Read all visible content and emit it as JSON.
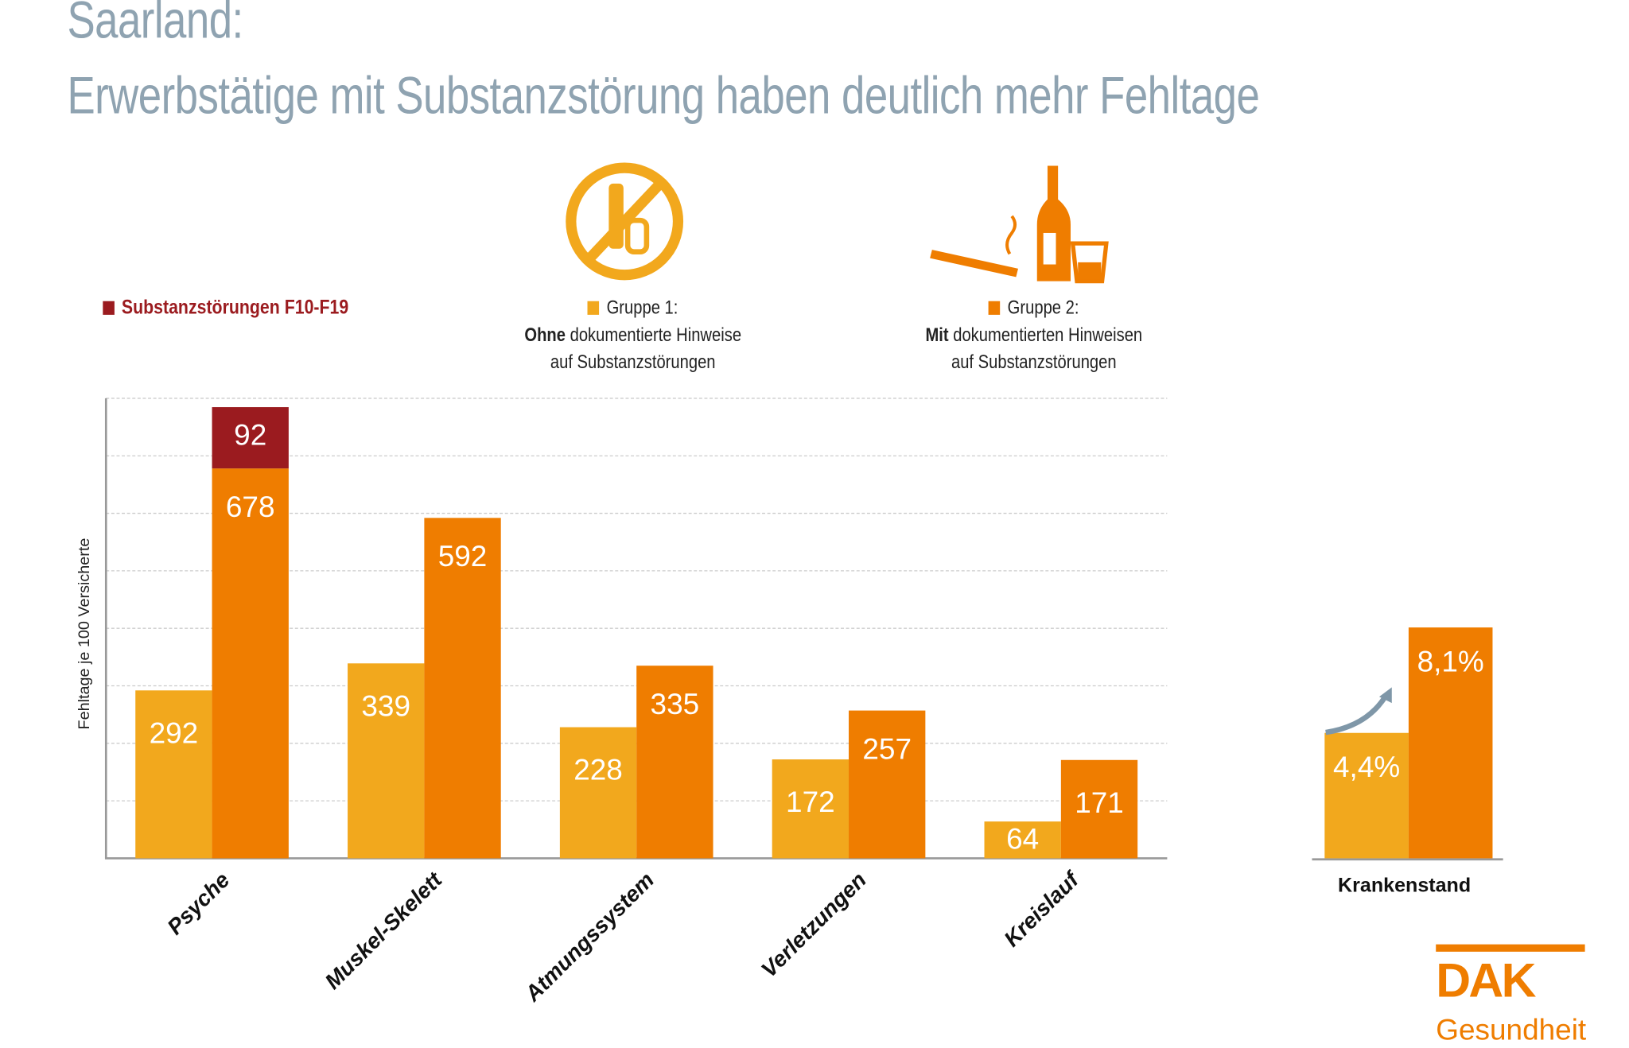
{
  "title_line1": "Saarland:",
  "title_line2": "Erwerbstätige mit Substanzstörung haben deutlich mehr Fehltage",
  "legend": {
    "substanz": "Substanzstörungen F10-F19",
    "g1_line1": "Gruppe 1:",
    "g1_bold": "Ohne",
    "g1_rest": " dokumentierte Hinweise",
    "g1_line3": "auf Substanzstörungen",
    "g2_line1": "Gruppe 2:",
    "g2_bold": "Mit",
    "g2_rest": " dokumentierten Hinweisen",
    "g2_line3": "auf Substanzstörungen"
  },
  "icons": {
    "group1": "no-alcohol-no-smoking-icon",
    "group2": "cigarette-bottle-glass-icon"
  },
  "colors": {
    "group1": "#f2a81d",
    "group2": "#ef7d00",
    "substanz": "#9b1b1f",
    "title": "#8fa3b1"
  },
  "chart_data": [
    {
      "type": "bar",
      "ylabel": "Fehltage je 100 Versicherte",
      "ylim": [
        0,
        800
      ],
      "grid": true,
      "categories": [
        "Psyche",
        "Muskel-Skelett",
        "Atmungssystem",
        "Verletzungen",
        "Kreislauf"
      ],
      "series": [
        {
          "name": "Gruppe 1",
          "values": [
            292,
            339,
            228,
            172,
            64
          ]
        },
        {
          "name": "Gruppe 2",
          "values": [
            678,
            592,
            335,
            257,
            171
          ]
        },
        {
          "name": "Substanzstörungen F10-F19",
          "values": [
            92,
            0,
            0,
            0,
            0
          ],
          "stacked_on": "Gruppe 2"
        }
      ]
    },
    {
      "type": "bar",
      "categories": [
        "Krankenstand"
      ],
      "series": [
        {
          "name": "Gruppe 1",
          "values": [
            4.4
          ],
          "label": "4,4%"
        },
        {
          "name": "Gruppe 2",
          "values": [
            8.1
          ],
          "label": "8,1%"
        }
      ]
    }
  ],
  "logo": {
    "line1": "DAK",
    "line2": "Gesundheit"
  }
}
